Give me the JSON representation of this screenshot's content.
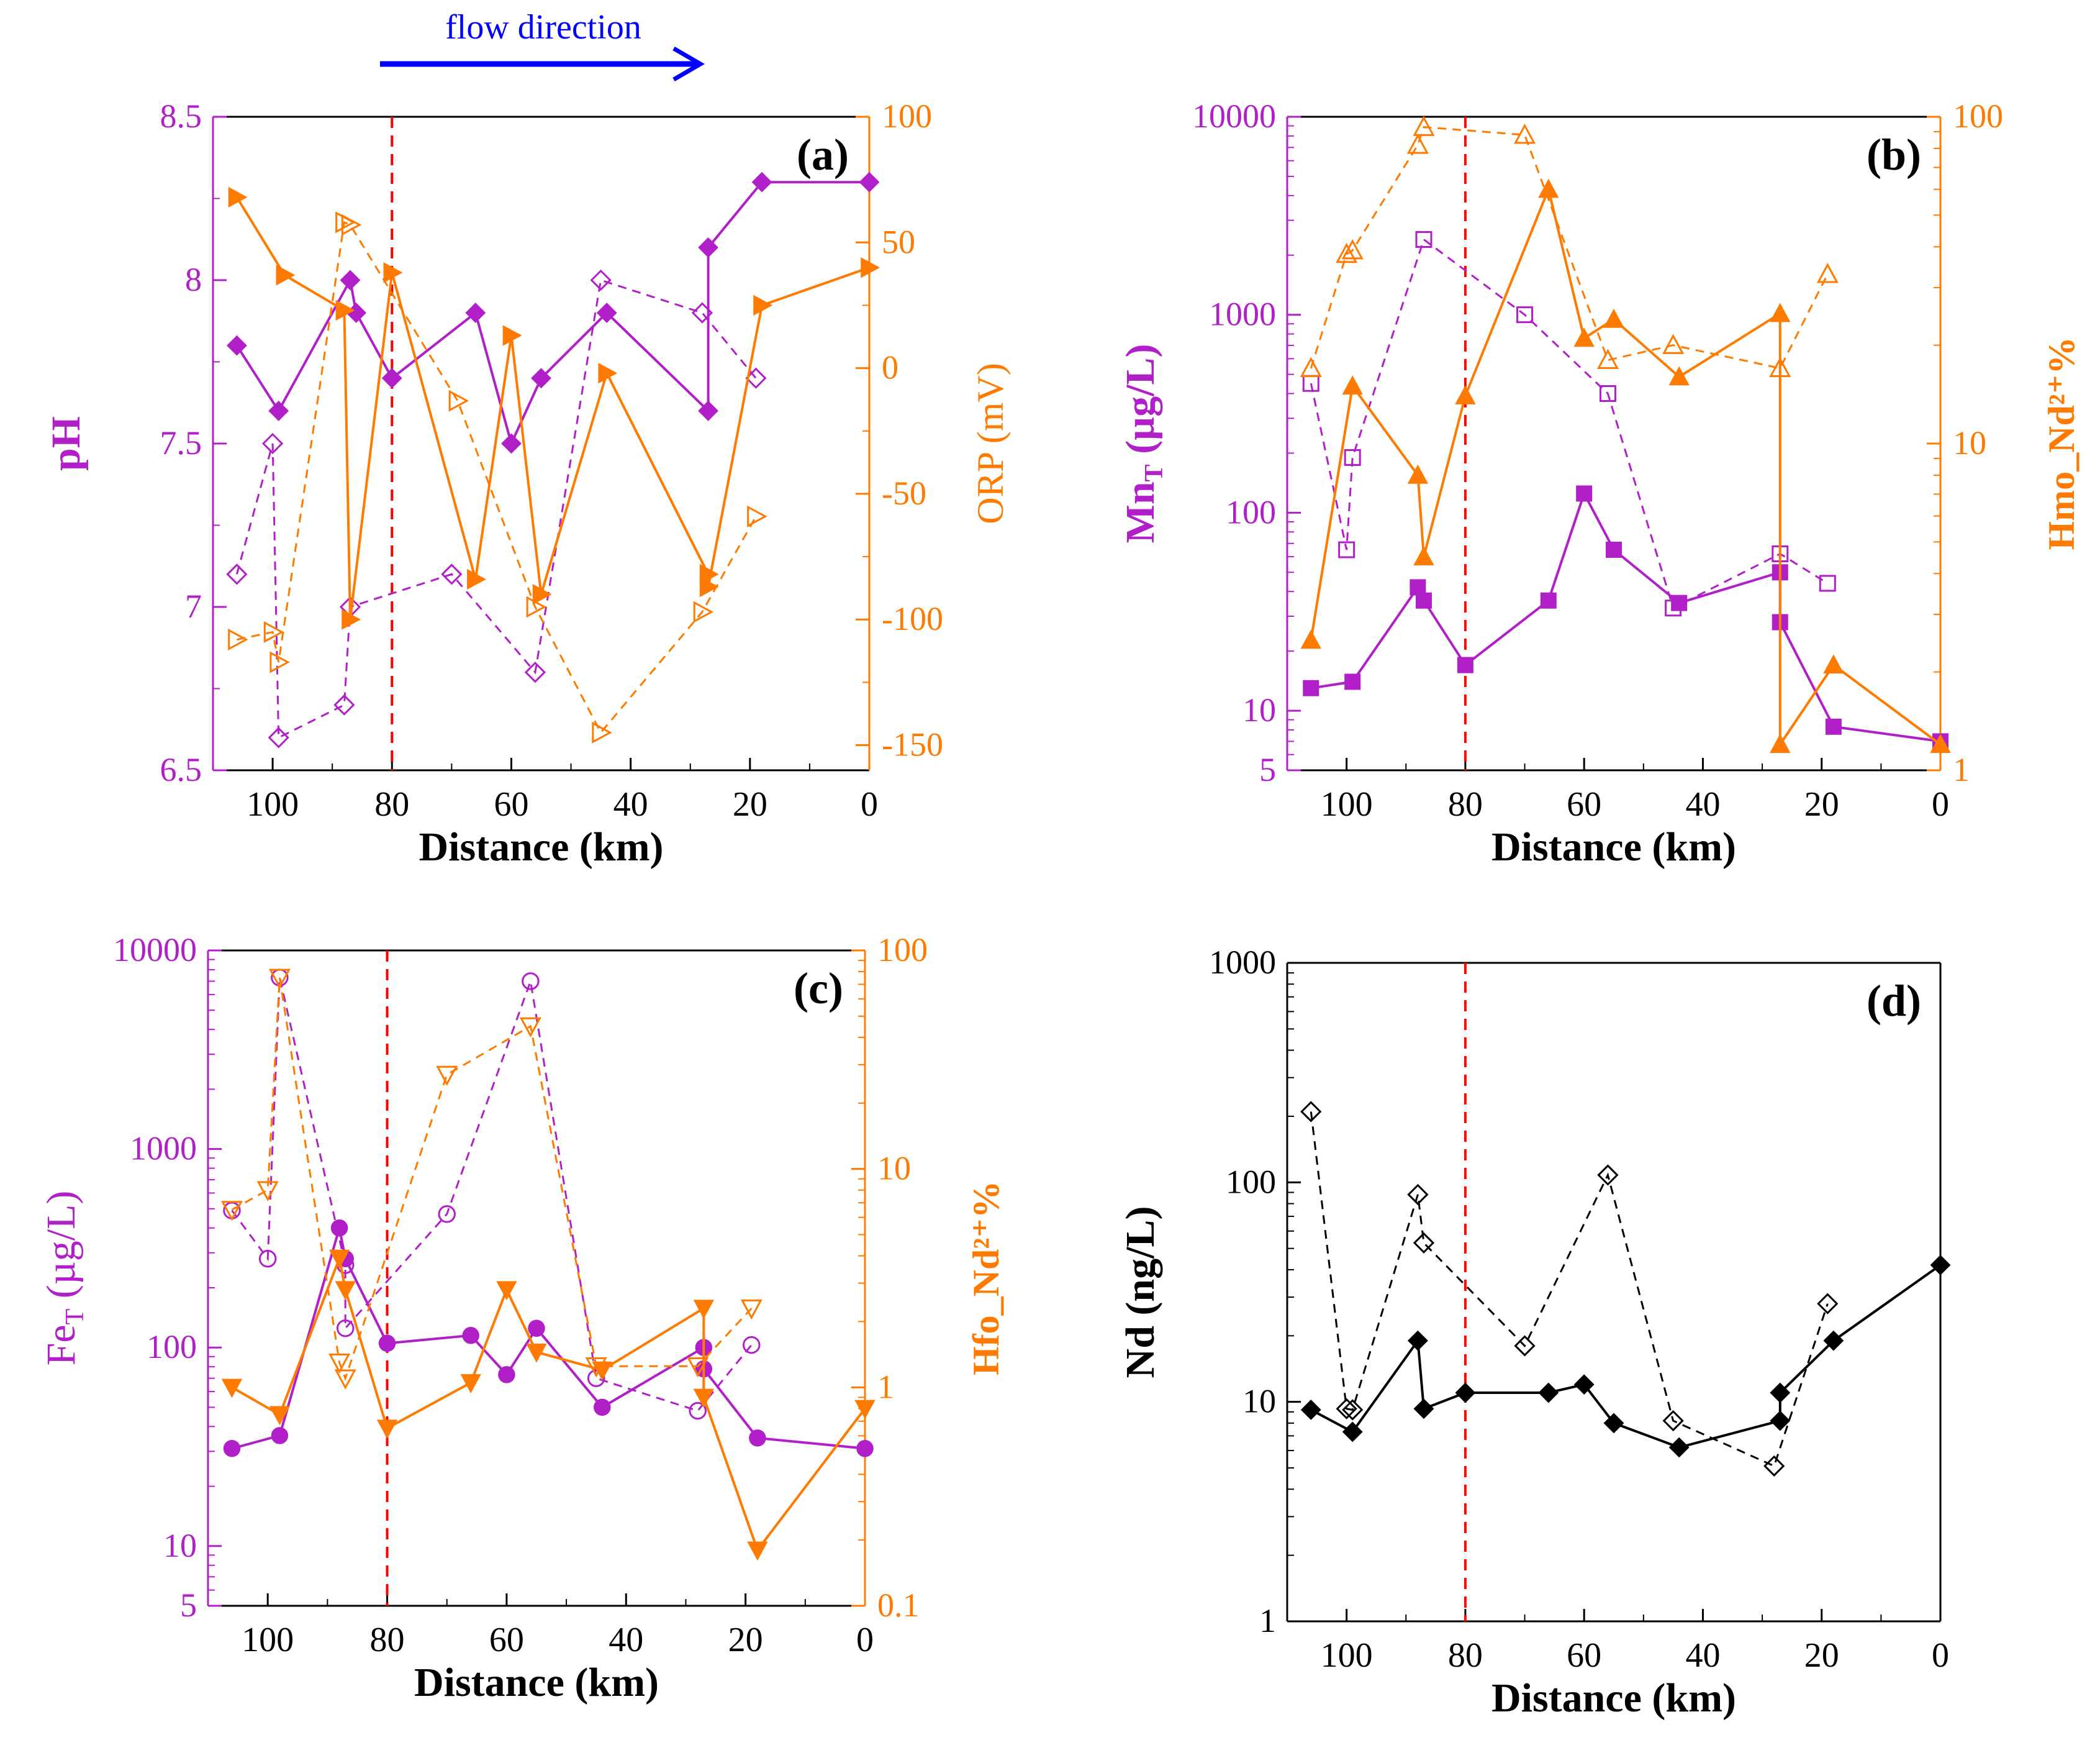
{
  "figure_title": "flow direction",
  "colors": {
    "purple": "#b01fc8",
    "orange": "#ff7a00",
    "black": "#000000",
    "ref_line": "#ff0000",
    "arrow": "#0000ff"
  },
  "reference_distance_km": 80,
  "chart_data": [
    {
      "id": "a",
      "panel_label": "(a)",
      "type": "line",
      "xlabel": "Distance (km)",
      "xlim": [
        110,
        0
      ],
      "xticks": [
        "100",
        "80",
        "60",
        "40",
        "20",
        "0"
      ],
      "left_axis": {
        "label": "pH",
        "scale": "linear",
        "lim": [
          6.5,
          8.5
        ],
        "ticks": [
          "6.5",
          "7",
          "7.5",
          "8",
          "8.5"
        ],
        "color": "purple"
      },
      "right_axis": {
        "label": "ORP (mV)",
        "scale": "linear",
        "lim": [
          -160,
          100
        ],
        "ticks": [
          "-150",
          "-100",
          "-50",
          "0",
          "50",
          "100"
        ],
        "color": "orange"
      },
      "series": [
        {
          "name": "pH (solid)",
          "axis": "left",
          "style": "solid",
          "marker": "diamond",
          "filled": true,
          "color": "purple",
          "x": [
            106,
            99,
            87,
            86,
            80,
            66,
            60,
            55,
            44,
            27,
            27,
            18,
            0
          ],
          "y": [
            7.8,
            7.6,
            8.0,
            7.9,
            7.7,
            7.9,
            7.5,
            7.7,
            7.9,
            7.6,
            8.1,
            8.3,
            8.3
          ]
        },
        {
          "name": "pH (dashed)",
          "axis": "left",
          "style": "dashed",
          "marker": "diamond",
          "filled": false,
          "color": "purple",
          "x": [
            106,
            100,
            99,
            88,
            87,
            70,
            56,
            45,
            28,
            19
          ],
          "y": [
            7.1,
            7.5,
            6.6,
            6.7,
            7.0,
            7.1,
            6.8,
            8.0,
            7.9,
            7.7
          ]
        },
        {
          "name": "ORP (solid)",
          "axis": "right",
          "style": "solid",
          "marker": "triangle-right",
          "filled": true,
          "color": "orange",
          "x": [
            106,
            98,
            88,
            87,
            80,
            66,
            60,
            55,
            44,
            27,
            27,
            18,
            0
          ],
          "y": [
            68,
            37,
            23,
            -100,
            38,
            -84,
            13,
            -90,
            -2,
            -82,
            -87,
            25,
            40
          ]
        },
        {
          "name": "ORP (dashed)",
          "axis": "right",
          "style": "dashed",
          "marker": "triangle-right",
          "filled": false,
          "color": "orange",
          "x": [
            106,
            100,
            99,
            88,
            87,
            69,
            56,
            45,
            28,
            19
          ],
          "y": [
            -108,
            -105,
            -117,
            58,
            57,
            -13,
            -95,
            -145,
            -97,
            -59
          ]
        }
      ]
    },
    {
      "id": "b",
      "panel_label": "(b)",
      "type": "line",
      "xlabel": "Distance (km)",
      "xlim": [
        110,
        0
      ],
      "xticks": [
        "100",
        "80",
        "60",
        "40",
        "20",
        "0"
      ],
      "left_axis": {
        "label": "MnT (µg/L)",
        "label_main": "Mn",
        "label_sub": "T",
        "label_rest": " (µg/L)",
        "scale": "log",
        "lim": [
          5,
          10000
        ],
        "ticks": [
          "5",
          "10",
          "100",
          "1000",
          "10000"
        ],
        "color": "purple"
      },
      "right_axis": {
        "label": "Hmo_Nd²⁺%",
        "scale": "log",
        "lim": [
          1,
          100
        ],
        "ticks": [
          "1",
          "10",
          "100"
        ],
        "color": "orange"
      },
      "series": [
        {
          "name": "MnT (solid)",
          "axis": "left",
          "style": "solid",
          "marker": "square",
          "filled": true,
          "color": "purple",
          "x": [
            106,
            99,
            88,
            87,
            80,
            66,
            60,
            55,
            44,
            27,
            27,
            18,
            0
          ],
          "y": [
            13,
            14,
            42,
            36,
            17,
            36,
            125,
            65,
            35,
            50,
            28,
            8.3,
            7
          ]
        },
        {
          "name": "MnT (dashed)",
          "axis": "left",
          "style": "dashed",
          "marker": "square",
          "filled": false,
          "color": "purple",
          "x": [
            106,
            100,
            99,
            87,
            70,
            56,
            45,
            27,
            19
          ],
          "y": [
            450,
            65,
            190,
            2400,
            1000,
            400,
            33,
            62,
            44
          ]
        },
        {
          "name": "Hmo_Nd (solid)",
          "axis": "right",
          "style": "solid",
          "marker": "triangle-up",
          "filled": true,
          "color": "orange",
          "x": [
            106,
            99,
            88,
            87,
            80,
            66,
            60,
            55,
            44,
            27,
            27,
            18,
            0
          ],
          "y": [
            2.5,
            15,
            8,
            4.5,
            14,
            60,
            21,
            24,
            16,
            25,
            1.2,
            2.1,
            1.2
          ]
        },
        {
          "name": "Hmo_Nd (dashed)",
          "axis": "right",
          "style": "dashed",
          "marker": "triangle-up",
          "filled": false,
          "color": "orange",
          "x": [
            106,
            100,
            99,
            88,
            87,
            70,
            56,
            45,
            27,
            19
          ],
          "y": [
            17,
            38,
            39,
            82,
            93,
            88,
            18,
            20,
            17,
            33
          ]
        }
      ]
    },
    {
      "id": "c",
      "panel_label": "(c)",
      "type": "line",
      "xlabel": "Distance (km)",
      "xlim": [
        110,
        0
      ],
      "xticks": [
        "100",
        "80",
        "60",
        "40",
        "20",
        "0"
      ],
      "left_axis": {
        "label": "FeT (µg/L)",
        "label_main": "Fe",
        "label_sub": "T",
        "label_rest": " (µg/L)",
        "scale": "log",
        "lim": [
          5,
          10000
        ],
        "ticks": [
          "5",
          "10",
          "100",
          "1000",
          "10000"
        ],
        "color": "purple"
      },
      "right_axis": {
        "label": "Hfo_Nd²⁺%",
        "scale": "log",
        "lim": [
          0.1,
          100
        ],
        "ticks": [
          "0.1",
          "1",
          "10",
          "100"
        ],
        "color": "orange"
      },
      "series": [
        {
          "name": "FeT (solid)",
          "axis": "left",
          "style": "solid",
          "marker": "circle",
          "filled": true,
          "color": "purple",
          "x": [
            106,
            98,
            88,
            87,
            80,
            66,
            60,
            55,
            44,
            27,
            27,
            18,
            0
          ],
          "y": [
            31,
            36,
            400,
            280,
            105,
            115,
            73,
            125,
            50,
            100,
            78,
            35,
            31
          ]
        },
        {
          "name": "FeT (dashed)",
          "axis": "left",
          "style": "dashed",
          "marker": "circle",
          "filled": false,
          "color": "purple",
          "x": [
            106,
            100,
            98,
            87,
            87,
            70,
            56,
            45,
            28,
            19
          ],
          "y": [
            490,
            280,
            7300,
            260,
            125,
            470,
            7000,
            70,
            48,
            103
          ]
        },
        {
          "name": "Hfo_Nd (solid)",
          "axis": "right",
          "style": "solid",
          "marker": "triangle-down",
          "filled": true,
          "color": "orange",
          "x": [
            106,
            98,
            88,
            87,
            80,
            66,
            60,
            55,
            44,
            27,
            27,
            18,
            0
          ],
          "y": [
            1.0,
            0.75,
            3.9,
            2.8,
            0.65,
            1.05,
            2.8,
            1.45,
            1.2,
            2.3,
            0.9,
            0.18,
            0.8
          ]
        },
        {
          "name": "Hfo_Nd (dashed)",
          "axis": "right",
          "style": "dashed",
          "marker": "triangle-down",
          "filled": false,
          "color": "orange",
          "x": [
            106,
            100,
            98,
            88,
            87,
            70,
            56,
            45,
            28,
            19
          ],
          "y": [
            6.5,
            8,
            75,
            1.3,
            1.1,
            27,
            45,
            1.25,
            1.25,
            2.3
          ]
        }
      ]
    },
    {
      "id": "d",
      "panel_label": "(d)",
      "type": "line",
      "xlabel": "Distance (km)",
      "xlim": [
        110,
        0
      ],
      "xticks": [
        "100",
        "80",
        "60",
        "40",
        "20",
        "0"
      ],
      "left_axis": {
        "label": "Nd (ng/L)",
        "scale": "log",
        "lim": [
          1,
          1000
        ],
        "ticks": [
          "1",
          "10",
          "100",
          "1000"
        ],
        "color": "black"
      },
      "series": [
        {
          "name": "Nd (solid)",
          "axis": "left",
          "style": "solid",
          "marker": "diamond",
          "filled": true,
          "color": "black",
          "x": [
            106,
            99,
            88,
            87,
            80,
            66,
            60,
            55,
            44,
            27,
            27,
            18,
            0
          ],
          "y": [
            9.2,
            7.3,
            19,
            9.3,
            11,
            11,
            12,
            8,
            6.2,
            8.2,
            11,
            19,
            42
          ]
        },
        {
          "name": "Nd (dashed)",
          "axis": "left",
          "style": "dashed",
          "marker": "diamond",
          "filled": false,
          "color": "black",
          "x": [
            106,
            100,
            99,
            88,
            87,
            70,
            56,
            45,
            28,
            19
          ],
          "y": [
            210,
            9.3,
            9.2,
            88,
            53,
            18,
            108,
            8.2,
            5.1,
            28
          ]
        }
      ]
    }
  ]
}
